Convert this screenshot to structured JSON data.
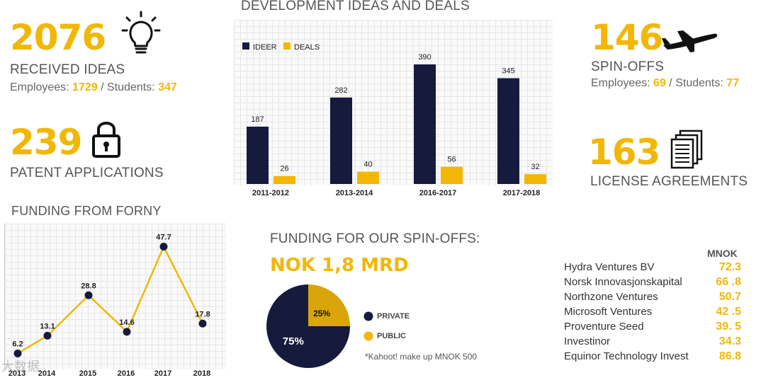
{
  "colors": {
    "navy": "#161a3d",
    "gold": "#f2b705",
    "grey": "#555555"
  },
  "stats": {
    "ideas": {
      "value": "2076",
      "label": "RECEIVED IDEAS",
      "employees_label": "Employees:",
      "employees": "1729",
      "sep": "/",
      "students_label": "Students:",
      "students": "347",
      "icon": "lightbulb-icon"
    },
    "patents": {
      "value": "239",
      "label": "PATENT APPLICATIONS",
      "icon": "padlock-icon"
    },
    "spinoffs": {
      "value": "146",
      "label": "SPIN-OFFS",
      "employees_label": "Employees:",
      "employees": "69",
      "sep": "/",
      "students_label": "Students:",
      "students": "77",
      "icon": "airplane-icon"
    },
    "licenses": {
      "value": "163",
      "label": "LICENSE AGREEMENTS",
      "icon": "documents-icon"
    }
  },
  "dev_chart_title": "DEVELOPMENT IDEAS AND DEALS",
  "forny_title": "FUNDING FROM FORNY",
  "spinoff_funding": {
    "title": "FUNDING FOR OUR SPIN-OFFS:",
    "total": "NOK 1,8 MRD",
    "legend": [
      {
        "label": "PRIVATE"
      },
      {
        "label": "PUBLIC"
      }
    ],
    "note": "*Kahoot! make up MNOK 500"
  },
  "investors": {
    "header": "MNOK",
    "rows": [
      {
        "name": "Hydra Ventures BV",
        "value": "72.3"
      },
      {
        "name": "Norsk Innovasjonskapital",
        "value": "66 .8"
      },
      {
        "name": "Northzone Ventures",
        "value": "50.7"
      },
      {
        "name": "Microsoft Ventures",
        "value": "42 .5"
      },
      {
        "name": "Proventure Seed",
        "value": "39. 5"
      },
      {
        "name": "Investinor",
        "value": "34.3"
      },
      {
        "name": "Equinor Technology Invest",
        "value": "86.8"
      }
    ]
  },
  "watermark": "大数据",
  "chart_data": [
    {
      "type": "bar",
      "title": "DEVELOPMENT IDEAS AND DEALS",
      "categories": [
        "2011-2012",
        "2013-2014",
        "2016-2017",
        "2017-2018"
      ],
      "series": [
        {
          "name": "IDEER",
          "values": [
            187,
            282,
            390,
            345
          ],
          "color": "#161a3d"
        },
        {
          "name": "DEALS",
          "values": [
            26,
            40,
            56,
            32
          ],
          "color": "#f2b705"
        }
      ],
      "ylim": [
        0,
        420
      ],
      "legend": "top-left"
    },
    {
      "type": "line",
      "title": "FUNDING FROM FORNY",
      "x": [
        "2013",
        "2014",
        "2015",
        "2016",
        "2017",
        "2018"
      ],
      "values": [
        6.2,
        13.1,
        28.8,
        14.6,
        47.7,
        17.8
      ],
      "labels": [
        "6.2",
        "13.1",
        "28.8",
        "14.6",
        "47.7",
        "17.8"
      ],
      "ylim": [
        0,
        55
      ]
    },
    {
      "type": "pie",
      "title": "FUNDING FOR OUR SPIN-OFFS",
      "categories": [
        "PRIVATE",
        "PUBLIC"
      ],
      "values": [
        75,
        25
      ],
      "labels": [
        "75%",
        "25%"
      ],
      "colors": [
        "#161a3d",
        "#d9a50a"
      ]
    }
  ]
}
